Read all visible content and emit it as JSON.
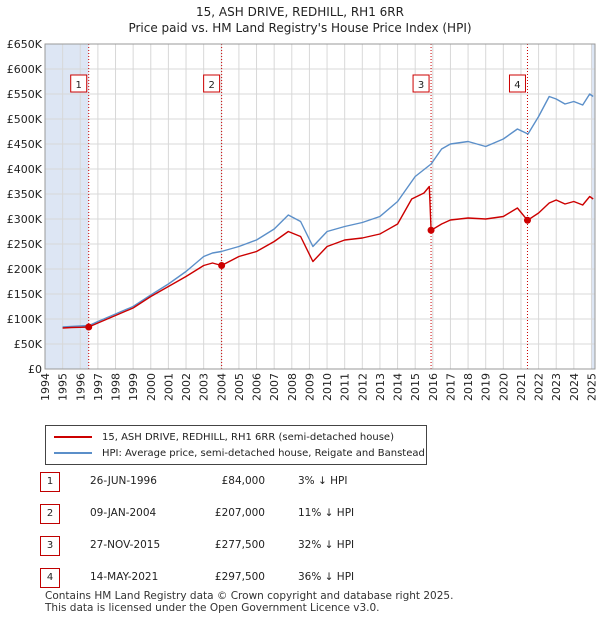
{
  "title_line1": "15, ASH DRIVE, REDHILL, RH1 6RR",
  "title_line2": "Price paid vs. HM Land Registry's House Price Index (HPI)",
  "legend": {
    "property_label": "15, ASH DRIVE, REDHILL, RH1 6RR (semi-detached house)",
    "hpi_label": "HPI: Average price, semi-detached house, Reigate and Banstead"
  },
  "sales": [
    {
      "num": "1",
      "date": "26-JUN-1996",
      "price": "£84,000",
      "hpi": "3% ↓ HPI"
    },
    {
      "num": "2",
      "date": "09-JAN-2004",
      "price": "£207,000",
      "hpi": "11% ↓ HPI"
    },
    {
      "num": "3",
      "date": "27-NOV-2015",
      "price": "£277,500",
      "hpi": "32% ↓ HPI"
    },
    {
      "num": "4",
      "date": "14-MAY-2021",
      "price": "£297,500",
      "hpi": "36% ↓ HPI"
    }
  ],
  "footer_line1": "Contains HM Land Registry data © Crown copyright and database right 2025.",
  "footer_line2": "This data is licensed under the Open Government Licence v3.0.",
  "colors": {
    "property": "#cc0000",
    "hpi": "#5b8fc9",
    "marker_line": "#cc0000",
    "band": "#dde6f4",
    "grid": "#d8d8d8"
  },
  "chart_data": {
    "type": "line",
    "title": "Price paid vs. HM Land Registry's House Price Index (HPI)",
    "xlabel": "",
    "ylabel": "",
    "xlim": [
      1994.0,
      2025.2
    ],
    "ylim": [
      0,
      650000
    ],
    "yticks": [
      0,
      50000,
      100000,
      150000,
      200000,
      250000,
      300000,
      350000,
      400000,
      450000,
      500000,
      550000,
      600000,
      650000
    ],
    "ytick_labels": [
      "£0",
      "£50K",
      "£100K",
      "£150K",
      "£200K",
      "£250K",
      "£300K",
      "£350K",
      "£400K",
      "£450K",
      "£500K",
      "£550K",
      "£600K",
      "£650K"
    ],
    "xticks": [
      1994,
      1995,
      1996,
      1997,
      1998,
      1999,
      2000,
      2001,
      2002,
      2003,
      2004,
      2005,
      2006,
      2007,
      2008,
      2009,
      2010,
      2011,
      2012,
      2013,
      2014,
      2015,
      2016,
      2017,
      2018,
      2019,
      2020,
      2021,
      2022,
      2023,
      2024,
      2025
    ],
    "xtick_labels": [
      "1994",
      "1995",
      "1996",
      "1997",
      "1998",
      "1999",
      "2000",
      "2001",
      "2002",
      "2003",
      "2004",
      "2005",
      "2006",
      "2007",
      "2008",
      "2009",
      "2010",
      "2011",
      "2012",
      "2013",
      "2014",
      "2015",
      "2016",
      "2017",
      "2018",
      "2019",
      "2020",
      "2021",
      "2022",
      "2023",
      "2024",
      "2025"
    ],
    "grid": true,
    "series": [
      {
        "name": "15, ASH DRIVE, REDHILL, RH1 6RR (semi-detached house)",
        "x": [
          1995.0,
          1995.5,
          1996.0,
          1996.48,
          1997.0,
          1998.0,
          1999.0,
          2000.0,
          2001.0,
          2002.0,
          2003.0,
          2003.5,
          2004.02,
          2005.0,
          2006.0,
          2007.0,
          2007.8,
          2008.5,
          2009.2,
          2010.0,
          2011.0,
          2012.0,
          2013.0,
          2014.0,
          2014.8,
          2015.5,
          2015.8,
          2015.9,
          2016.5,
          2017.0,
          2018.0,
          2019.0,
          2020.0,
          2020.8,
          2021.37,
          2022.0,
          2022.6,
          2023.0,
          2023.5,
          2024.0,
          2024.5,
          2024.9,
          2025.1
        ],
        "values": [
          82000,
          83000,
          83500,
          84000,
          92000,
          107000,
          122000,
          145000,
          165000,
          185000,
          207000,
          212000,
          207000,
          225000,
          235000,
          255000,
          275000,
          265000,
          215000,
          245000,
          258000,
          262000,
          270000,
          290000,
          340000,
          352000,
          365000,
          277500,
          290000,
          298000,
          302000,
          300000,
          305000,
          322000,
          297500,
          312000,
          332000,
          338000,
          330000,
          335000,
          328000,
          345000,
          340000
        ]
      },
      {
        "name": "HPI: Average price, semi-detached house, Reigate and Banstead",
        "x": [
          1995.0,
          1995.5,
          1996.0,
          1996.5,
          1997.0,
          1998.0,
          1999.0,
          2000.0,
          2001.0,
          2002.0,
          2003.0,
          2003.5,
          2004.0,
          2005.0,
          2006.0,
          2007.0,
          2007.8,
          2008.5,
          2009.2,
          2010.0,
          2011.0,
          2012.0,
          2013.0,
          2014.0,
          2015.0,
          2015.9,
          2016.5,
          2017.0,
          2018.0,
          2019.0,
          2020.0,
          2020.8,
          2021.4,
          2022.0,
          2022.6,
          2023.0,
          2023.5,
          2024.0,
          2024.5,
          2024.9,
          2025.1
        ],
        "values": [
          84000,
          85000,
          86000,
          87000,
          95000,
          110000,
          125000,
          148000,
          170000,
          195000,
          225000,
          232000,
          235000,
          245000,
          258000,
          280000,
          308000,
          295000,
          245000,
          275000,
          285000,
          293000,
          305000,
          335000,
          385000,
          410000,
          440000,
          450000,
          455000,
          445000,
          460000,
          480000,
          470000,
          505000,
          545000,
          540000,
          530000,
          535000,
          528000,
          550000,
          545000
        ]
      }
    ],
    "sales": [
      {
        "num": "1",
        "x": 1996.48,
        "value": 84000
      },
      {
        "num": "2",
        "x": 2004.02,
        "value": 207000
      },
      {
        "num": "3",
        "x": 2015.9,
        "value": 277500
      },
      {
        "num": "4",
        "x": 2021.37,
        "value": 297500
      }
    ]
  }
}
